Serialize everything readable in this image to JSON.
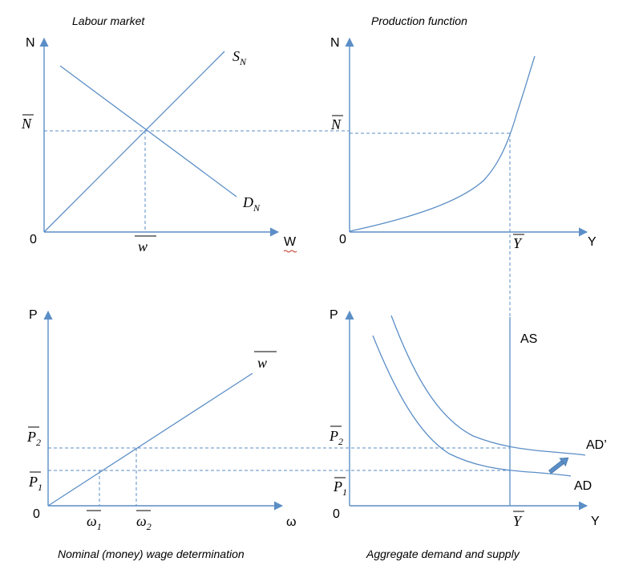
{
  "panels": {
    "labour": {
      "title": "Labour market",
      "y_axis": "N",
      "x_axis": "W",
      "origin": "0",
      "supply_label": "S",
      "supply_sub": "N",
      "demand_label": "D",
      "demand_sub": "N",
      "n_bar": "N",
      "w_bar": "w"
    },
    "production": {
      "title": "Production function",
      "y_axis": "N",
      "x_axis": "Y",
      "origin": "0",
      "n_bar": "N",
      "y_bar": "Y"
    },
    "wage": {
      "title": "Nominal (money) wage determination",
      "y_axis": "P",
      "x_axis": "ω",
      "origin": "0",
      "line_label": "w",
      "p2": "P",
      "p2_sub": "2",
      "p1": "P",
      "p1_sub": "1",
      "omega1": "ω",
      "omega1_sub": "1",
      "omega2": "ω",
      "omega2_sub": "2"
    },
    "ad_as": {
      "title": "Aggregate demand and supply",
      "y_axis": "P",
      "x_axis": "Y",
      "origin": "0",
      "as_label": "AS",
      "ad_label": "AD",
      "ad_prime_label": "AD’",
      "p2": "P",
      "p2_sub": "2",
      "p1": "P",
      "p1_sub": "1",
      "y_bar": "Y"
    }
  },
  "colors": {
    "line": "#5b8ec6",
    "text": "#000000"
  }
}
